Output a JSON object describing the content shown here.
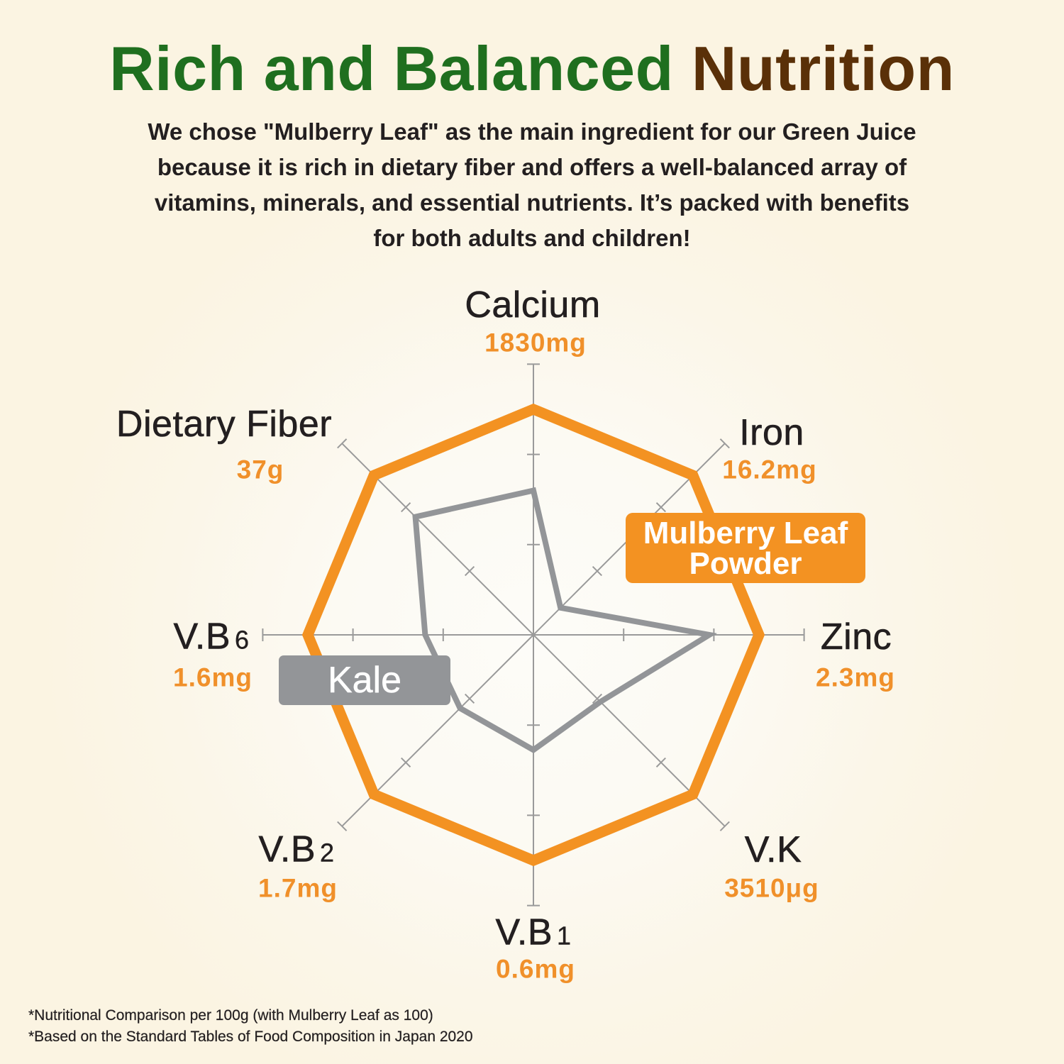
{
  "header": {
    "title_green": "Rich and Balanced",
    "title_brown": "Nutrition",
    "subtitle_lines": [
      "We chose \"Mulberry Leaf\" as the main ingredient for our Green Juice",
      "because it is rich in dietary fiber and offers a well-balanced array of",
      "vitamins, minerals, and essential nutrients. It’s packed with benefits",
      "for both adults and children!"
    ]
  },
  "chart": {
    "axes": [
      {
        "name": "Calcium",
        "sub": "",
        "value": "1830mg"
      },
      {
        "name": "Iron",
        "sub": "",
        "value": "16.2mg"
      },
      {
        "name": "Zinc",
        "sub": "",
        "value": "2.3mg"
      },
      {
        "name": "V.K",
        "sub": "",
        "value": "3510μg"
      },
      {
        "name": "V.B",
        "sub": "1",
        "value": "0.6mg"
      },
      {
        "name": "V.B",
        "sub": "2",
        "value": "1.7mg"
      },
      {
        "name": "V.B",
        "sub": "6",
        "value": "1.6mg"
      },
      {
        "name": "Dietary Fiber",
        "sub": "",
        "value": "37g"
      }
    ],
    "legend": {
      "mulberry_line1": "Mulberry Leaf",
      "mulberry_line2": "Powder",
      "kale": "Kale"
    }
  },
  "footnotes": [
    "*Nutritional Comparison per 100g (with Mulberry Leaf as 100)",
    "*Based on the Standard Tables of Food Composition in Japan 2020"
  ],
  "colors": {
    "title_green": "#1f6f1f",
    "title_brown": "#5a3008",
    "mulberry_orange": "#f39222",
    "kale_gray": "#939598",
    "value_orange": "#f0902a",
    "background": "#fbf4e2"
  },
  "chart_data": {
    "type": "radar",
    "title": "Rich and Balanced Nutrition",
    "categories": [
      "Calcium",
      "Iron",
      "Zinc",
      "V.K",
      "V.B1",
      "V.B2",
      "V.B6",
      "Dietary Fiber"
    ],
    "category_values": [
      "1830mg",
      "16.2mg",
      "2.3mg",
      "3510μg",
      "0.6mg",
      "1.7mg",
      "1.6mg",
      "37g"
    ],
    "series": [
      {
        "name": "Mulberry Leaf Powder",
        "color": "#f39222",
        "values": [
          100,
          100,
          100,
          100,
          100,
          100,
          100,
          100
        ]
      },
      {
        "name": "Kale",
        "color": "#939598",
        "values": [
          64,
          17,
          78,
          42,
          51,
          46,
          48,
          74
        ]
      }
    ],
    "rlim": [
      0,
      120
    ],
    "ticks": [
      40,
      80,
      120
    ],
    "grid": true,
    "legend_position": "inline labels (Mulberry Leaf Powder upper-right, Kale left)",
    "annotations": [
      "Nutritional Comparison per 100g (with Mulberry Leaf as 100)",
      "Based on the Standard Tables of Food Composition in Japan 2020"
    ]
  }
}
